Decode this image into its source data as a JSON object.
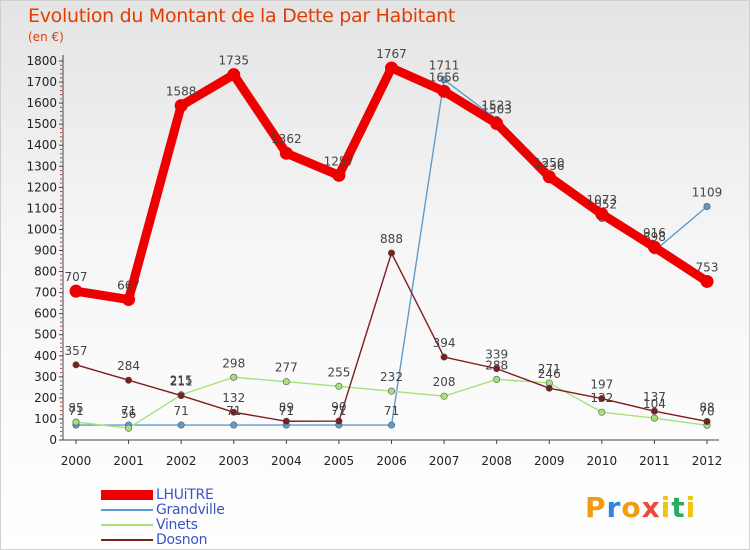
{
  "chart_data": {
    "type": "line",
    "title": "Evolution du Montant de la Dette par Habitant",
    "subtitle": "(en €)",
    "x": [
      "2000",
      "2001",
      "2002",
      "2003",
      "2004",
      "2005",
      "2006",
      "2007",
      "2008",
      "2009",
      "2010",
      "2011",
      "2012"
    ],
    "ylim": [
      0,
      1800
    ],
    "yticks": [
      0,
      100,
      200,
      300,
      400,
      500,
      600,
      700,
      800,
      900,
      1000,
      1100,
      1200,
      1300,
      1400,
      1500,
      1600,
      1700,
      1800
    ],
    "grid": false,
    "legend_position": "bottom-left",
    "series": [
      {
        "name": "LHUiTRE",
        "color": "#ee0000",
        "values": [
          707,
          667,
          1588,
          1735,
          1362,
          1257,
          1767,
          1656,
          1503,
          1250,
          1073,
          916,
          753
        ]
      },
      {
        "name": "Grandville",
        "color": "#5d9ccf",
        "values": [
          71,
          71,
          71,
          71,
          71,
          71,
          71,
          1711,
          1523,
          1236,
          1052,
          898,
          1109
        ]
      },
      {
        "name": "Vinets",
        "color": "#a6e27a",
        "values": [
          85,
          56,
          215,
          298,
          277,
          255,
          232,
          208,
          288,
          271,
          132,
          104,
          70
        ]
      },
      {
        "name": "Dosnon",
        "color": "#7d1e1e",
        "values": [
          357,
          284,
          211,
          132,
          89,
          90,
          888,
          394,
          339,
          246,
          197,
          137,
          88
        ]
      }
    ]
  },
  "brand": {
    "letters": [
      "P",
      "r",
      "o",
      "x",
      "i",
      "t",
      "i"
    ],
    "colors": [
      "#f39c12",
      "#2e86de",
      "#f39c12",
      "#e74c3c",
      "#f1c40f",
      "#27ae60",
      "#f1c40f"
    ]
  }
}
